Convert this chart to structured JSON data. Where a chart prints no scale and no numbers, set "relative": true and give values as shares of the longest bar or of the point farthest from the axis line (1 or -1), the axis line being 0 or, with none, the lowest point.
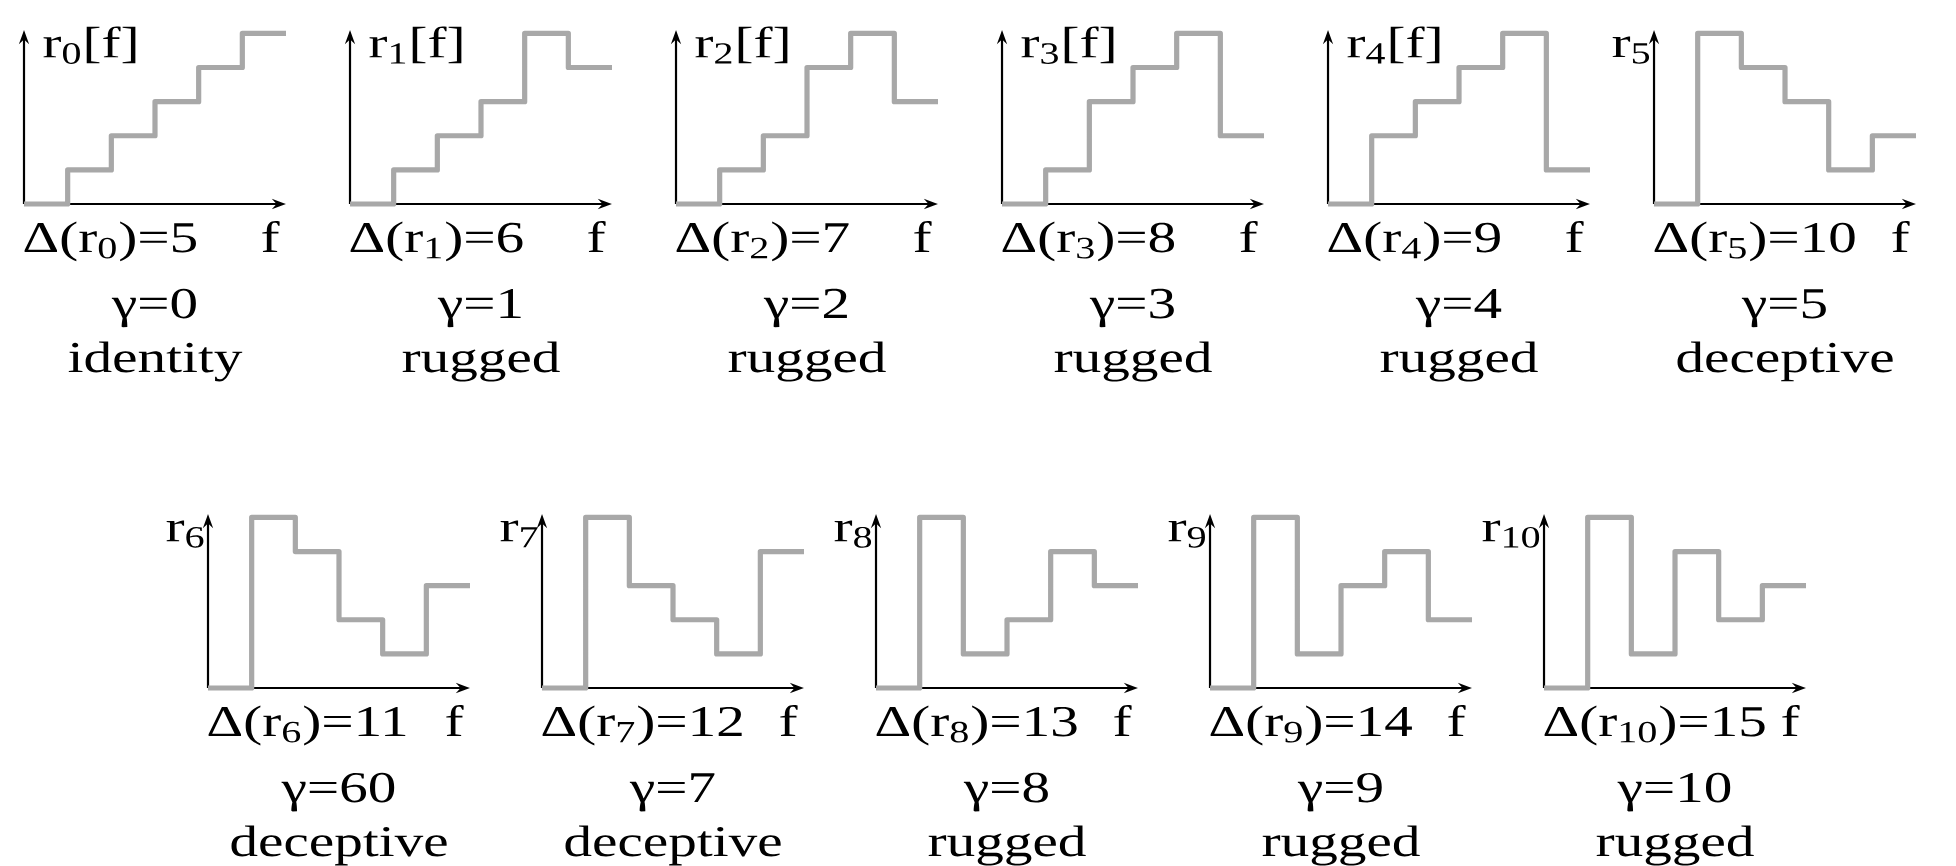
{
  "chart_data": [
    {
      "type": "step",
      "relative": true,
      "categories": [
        null,
        null,
        null,
        null,
        null,
        null,
        null
      ],
      "values": [
        0,
        0.2,
        0.4,
        0.6,
        0.8,
        1,
        1
      ],
      "color": "#a8a8a8",
      "ylabel": "r$_{0}$[f]",
      "xlabel": "f",
      "annotations": [
        "Δ(r$_{0}$)=5",
        "γ=0",
        "identity"
      ]
    },
    {
      "type": "step",
      "relative": true,
      "categories": [
        null,
        null,
        null,
        null,
        null,
        null,
        null
      ],
      "values": [
        0,
        0.2,
        0.4,
        0.6,
        1,
        0.8,
        0.8
      ],
      "color": "#a8a8a8",
      "ylabel": "r$_{1}$[f]",
      "xlabel": "f",
      "annotations": [
        "Δ(r$_{1}$)=6",
        "γ=1",
        "rugged"
      ]
    },
    {
      "type": "step",
      "relative": true,
      "categories": [
        null,
        null,
        null,
        null,
        null,
        null,
        null
      ],
      "values": [
        0,
        0.2,
        0.4,
        0.8,
        1,
        0.6,
        0.6
      ],
      "color": "#a8a8a8",
      "ylabel": "r$_{2}$[f]",
      "xlabel": "f",
      "annotations": [
        "Δ(r$_{2}$)=7",
        "γ=2",
        "rugged"
      ]
    },
    {
      "type": "step",
      "relative": true,
      "categories": [
        null,
        null,
        null,
        null,
        null,
        null,
        null
      ],
      "values": [
        0,
        0.2,
        0.6,
        0.8,
        1,
        0.4,
        0.4
      ],
      "color": "#a8a8a8",
      "ylabel": "r$_{3}$[f]",
      "xlabel": "f",
      "annotations": [
        "Δ(r$_{3}$)=8",
        "γ=3",
        "rugged"
      ]
    },
    {
      "type": "step",
      "relative": true,
      "categories": [
        null,
        null,
        null,
        null,
        null,
        null,
        null
      ],
      "values": [
        0,
        0.4,
        0.6,
        0.8,
        1,
        0.2,
        0.2
      ],
      "color": "#a8a8a8",
      "ylabel": "r$_{4}$[f]",
      "xlabel": "f",
      "annotations": [
        "Δ(r$_{4}$)=9",
        "γ=4",
        "rugged"
      ]
    },
    {
      "type": "step",
      "relative": true,
      "categories": [
        null,
        null,
        null,
        null,
        null,
        null,
        null
      ],
      "values": [
        0,
        1,
        0.8,
        0.6,
        0.2,
        0.4,
        0.4
      ],
      "color": "#a8a8a8",
      "ylabel": "r$_{5}$",
      "xlabel": "f",
      "annotations": [
        "Δ(r$_{5}$)=10",
        "γ=5",
        "deceptive"
      ]
    },
    {
      "type": "step",
      "relative": true,
      "categories": [
        null,
        null,
        null,
        null,
        null,
        null,
        null
      ],
      "values": [
        0,
        1,
        0.8,
        0.4,
        0.2,
        0.6,
        0.6
      ],
      "color": "#a8a8a8",
      "ylabel": "r$_{6}$",
      "xlabel": "f",
      "annotations": [
        "Δ(r$_{6}$)=11",
        "γ=60",
        "deceptive"
      ]
    },
    {
      "type": "step",
      "relative": true,
      "categories": [
        null,
        null,
        null,
        null,
        null,
        null,
        null
      ],
      "values": [
        0,
        1,
        0.6,
        0.4,
        0.2,
        0.8,
        0.8
      ],
      "color": "#a8a8a8",
      "ylabel": "r$_{7}$",
      "xlabel": "f",
      "annotations": [
        "Δ(r$_{7}$)=12",
        "γ=7",
        "deceptive"
      ]
    },
    {
      "type": "step",
      "relative": true,
      "categories": [
        null,
        null,
        null,
        null,
        null,
        null,
        null
      ],
      "values": [
        0,
        1,
        0.2,
        0.4,
        0.8,
        0.6,
        0.6
      ],
      "color": "#a8a8a8",
      "ylabel": "r$_{8}$",
      "xlabel": "f",
      "annotations": [
        "Δ(r$_{8}$)=13",
        "γ=8",
        "rugged"
      ]
    },
    {
      "type": "step",
      "relative": true,
      "categories": [
        null,
        null,
        null,
        null,
        null,
        null,
        null
      ],
      "values": [
        0,
        1,
        0.2,
        0.6,
        0.8,
        0.4,
        0.4
      ],
      "color": "#a8a8a8",
      "ylabel": "r$_{9}$",
      "xlabel": "f",
      "annotations": [
        "Δ(r$_{9}$)=14",
        "γ=9",
        "rugged"
      ]
    },
    {
      "type": "step",
      "relative": true,
      "categories": [
        null,
        null,
        null,
        null,
        null,
        null,
        null
      ],
      "values": [
        0,
        1,
        0.2,
        0.8,
        0.4,
        0.6,
        0.6
      ],
      "color": "#a8a8a8",
      "ylabel": "r$_{10}$",
      "xlabel": "f",
      "annotations": [
        "Δ(r$_{10}$)=15",
        "γ=10",
        "rugged"
      ]
    }
  ]
}
